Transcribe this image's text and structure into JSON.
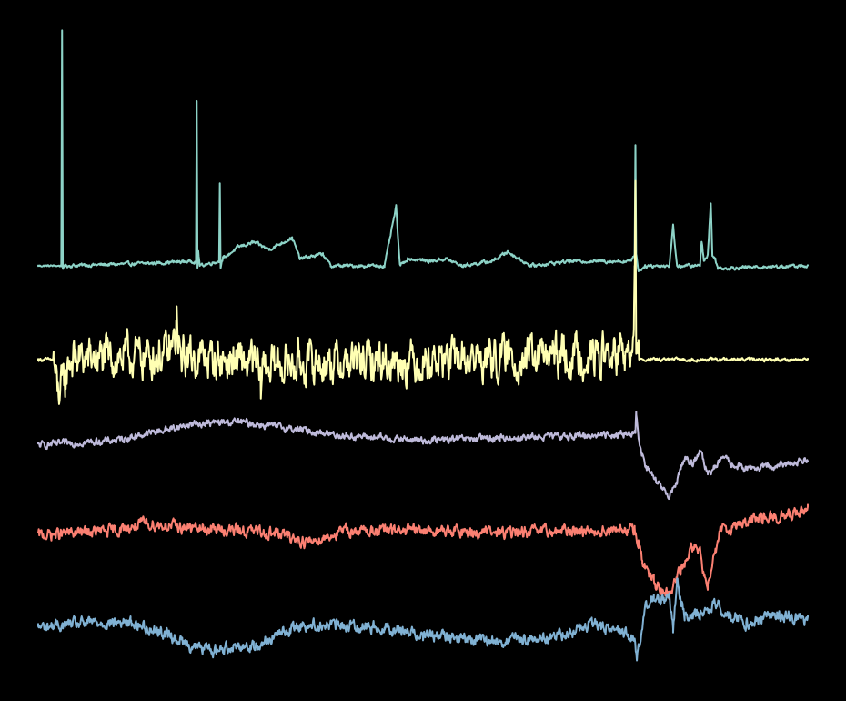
{
  "chart_data": {
    "type": "line",
    "title": "",
    "xlabel": "",
    "ylabel": "",
    "axes_visible": false,
    "grid": false,
    "legend": "none",
    "background": "#000000",
    "x_domain": [
      0,
      100
    ],
    "y_domain": [
      -1.3,
      1.1
    ],
    "series": [
      {
        "id": "trace-1",
        "color": "#8dd3c7",
        "baseline": 0,
        "noise": 0.006,
        "knots": [
          [
            0,
            0
          ],
          [
            3,
            0
          ],
          [
            3.1,
            1
          ],
          [
            3.2,
            -0.02
          ],
          [
            3.3,
            0
          ],
          [
            14,
            0.01
          ],
          [
            20.5,
            0.02
          ],
          [
            20.6,
            0.7
          ],
          [
            20.7,
            -0.01
          ],
          [
            20.8,
            0.06
          ],
          [
            21,
            0
          ],
          [
            23.5,
            0.02
          ],
          [
            23.6,
            0.35
          ],
          [
            23.7,
            0
          ],
          [
            24,
            0.03
          ],
          [
            26,
            0.08
          ],
          [
            28,
            0.1
          ],
          [
            30,
            0.07
          ],
          [
            33,
            0.12
          ],
          [
            34,
            0.03
          ],
          [
            37,
            0.05
          ],
          [
            38,
            0
          ],
          [
            45,
            0
          ],
          [
            46.5,
            0.25
          ],
          [
            47,
            0
          ],
          [
            48,
            0.03
          ],
          [
            51,
            0.02
          ],
          [
            53,
            0.03
          ],
          [
            55,
            0
          ],
          [
            59,
            0.02
          ],
          [
            61,
            0.06
          ],
          [
            64,
            0
          ],
          [
            69,
            0.02
          ],
          [
            77,
            0.02
          ],
          [
            77.5,
            0.05
          ],
          [
            77.6,
            0.52
          ],
          [
            77.7,
            0.05
          ],
          [
            78,
            -0.02
          ],
          [
            79,
            0
          ],
          [
            82,
            0
          ],
          [
            82.5,
            0.17
          ],
          [
            83,
            0
          ],
          [
            86,
            0
          ],
          [
            86.2,
            0.11
          ],
          [
            86.5,
            0.02
          ],
          [
            87,
            0.05
          ],
          [
            87.4,
            0.27
          ],
          [
            87.6,
            0.04
          ],
          [
            88,
            0.03
          ],
          [
            88.3,
            -0.01
          ],
          [
            100,
            0
          ]
        ]
      },
      {
        "id": "trace-2",
        "color": "#ffffb3",
        "baseline": 0,
        "noise": 0.07,
        "knots": [
          [
            0,
            0
          ],
          [
            2,
            0
          ],
          [
            2.5,
            -0.14
          ],
          [
            3.5,
            -0.1
          ],
          [
            4,
            0
          ],
          [
            17,
            0.02
          ],
          [
            17.9,
            0.08
          ],
          [
            18,
            0.2
          ],
          [
            18.2,
            0.02
          ],
          [
            28.5,
            -0.02
          ],
          [
            28.9,
            -0.14
          ],
          [
            29.1,
            -0.02
          ],
          [
            77.2,
            0.02
          ],
          [
            77.4,
            0.1
          ],
          [
            77.5,
            0.3
          ],
          [
            77.6,
            0.75
          ],
          [
            77.7,
            0.1
          ],
          [
            78,
            0
          ],
          [
            100,
            0
          ]
        ]
      },
      {
        "id": "trace-3",
        "color": "#bebada",
        "baseline": 0,
        "noise": 0.012,
        "knots": [
          [
            0,
            0
          ],
          [
            10,
            0.02
          ],
          [
            20,
            0.09
          ],
          [
            26,
            0.1
          ],
          [
            40,
            0.04
          ],
          [
            50,
            0.02
          ],
          [
            60,
            0.03
          ],
          [
            70,
            0.04
          ],
          [
            77.6,
            0.05
          ],
          [
            77.7,
            0.15
          ],
          [
            78,
            0.02
          ],
          [
            79,
            -0.1
          ],
          [
            81,
            -0.18
          ],
          [
            82,
            -0.22
          ],
          [
            83,
            -0.15
          ],
          [
            84,
            -0.05
          ],
          [
            85,
            -0.08
          ],
          [
            86,
            -0.03
          ],
          [
            87,
            -0.12
          ],
          [
            88,
            -0.09
          ],
          [
            89,
            -0.05
          ],
          [
            90,
            -0.08
          ],
          [
            92,
            -0.1
          ],
          [
            96,
            -0.09
          ],
          [
            100,
            -0.06
          ]
        ]
      },
      {
        "id": "trace-4",
        "color": "#fb8072",
        "baseline": 0,
        "noise": 0.02,
        "knots": [
          [
            0,
            0
          ],
          [
            10,
            0.02
          ],
          [
            14,
            0.05
          ],
          [
            20,
            0.03
          ],
          [
            26,
            0.02
          ],
          [
            31,
            0.01
          ],
          [
            35,
            -0.03
          ],
          [
            40,
            0.02
          ],
          [
            50,
            0.02
          ],
          [
            60,
            0.01
          ],
          [
            70,
            0.02
          ],
          [
            77.5,
            0.02
          ],
          [
            78,
            -0.02
          ],
          [
            78.5,
            -0.12
          ],
          [
            80,
            -0.2
          ],
          [
            81,
            -0.25
          ],
          [
            82,
            -0.25
          ],
          [
            83.5,
            -0.15
          ],
          [
            85,
            -0.05
          ],
          [
            86,
            -0.07
          ],
          [
            86.5,
            -0.17
          ],
          [
            87,
            -0.2
          ],
          [
            88,
            -0.05
          ],
          [
            89,
            0.05
          ],
          [
            90,
            0.02
          ],
          [
            91,
            0.05
          ],
          [
            94,
            0.07
          ],
          [
            100,
            0.1
          ]
        ]
      },
      {
        "id": "trace-5",
        "color": "#80b1d3",
        "baseline": 0,
        "noise": 0.02,
        "knots": [
          [
            0,
            0
          ],
          [
            7,
            0.02
          ],
          [
            12,
            0.02
          ],
          [
            16,
            -0.02
          ],
          [
            20,
            -0.08
          ],
          [
            23,
            -0.1
          ],
          [
            25,
            -0.08
          ],
          [
            28,
            -0.08
          ],
          [
            30,
            -0.05
          ],
          [
            34,
            0.01
          ],
          [
            38,
            0.01
          ],
          [
            45,
            0
          ],
          [
            50,
            -0.03
          ],
          [
            55,
            -0.05
          ],
          [
            60,
            -0.06
          ],
          [
            67,
            -0.04
          ],
          [
            72,
            0.01
          ],
          [
            76,
            -0.02
          ],
          [
            77.5,
            -0.05
          ],
          [
            77.8,
            -0.15
          ],
          [
            78.2,
            -0.05
          ],
          [
            79,
            0.1
          ],
          [
            80,
            0.12
          ],
          [
            82,
            0.12
          ],
          [
            82.5,
            0
          ],
          [
            83,
            0.2
          ],
          [
            84,
            0.05
          ],
          [
            86,
            0.05
          ],
          [
            88,
            0.1
          ],
          [
            90,
            0.05
          ],
          [
            92,
            0.02
          ],
          [
            96,
            0.05
          ],
          [
            100,
            0.03
          ]
        ]
      }
    ]
  }
}
